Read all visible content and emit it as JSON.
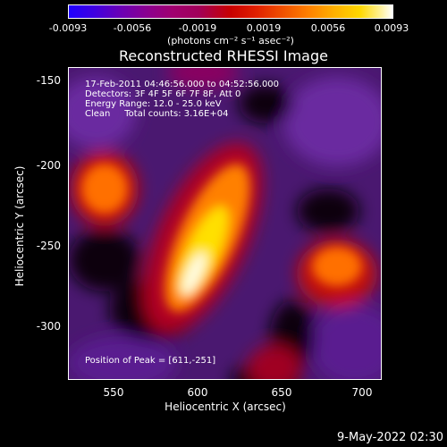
{
  "colorbar": {
    "ticks": [
      "-0.0093",
      "-0.0056",
      "-0.0019",
      "0.0019",
      "0.0056",
      "0.0093"
    ],
    "units": "(photons cm⁻² s⁻¹ asec⁻²)"
  },
  "title": "Reconstructed RHESSI Image",
  "annotations": {
    "time": "17-Feb-2011 04:46:56.000 to 04:52:56.000",
    "detectors": "Detectors: 3F 4F 5F 6F 7F 8F, Att 0",
    "energy": "Energy Range: 12.0 - 25.0 keV",
    "clean": "Clean     Total counts: 3.16E+04",
    "peak": "Position of Peak = [611,-251]"
  },
  "axes": {
    "xlabel": "Heliocentric X (arcsec)",
    "ylabel": "Heliocentric Y (arcsec)",
    "xticks": [
      "550",
      "600",
      "650",
      "700"
    ],
    "yticks": [
      "-150",
      "-200",
      "-250",
      "-300"
    ]
  },
  "datestamp": "9-May-2022 02:30"
}
